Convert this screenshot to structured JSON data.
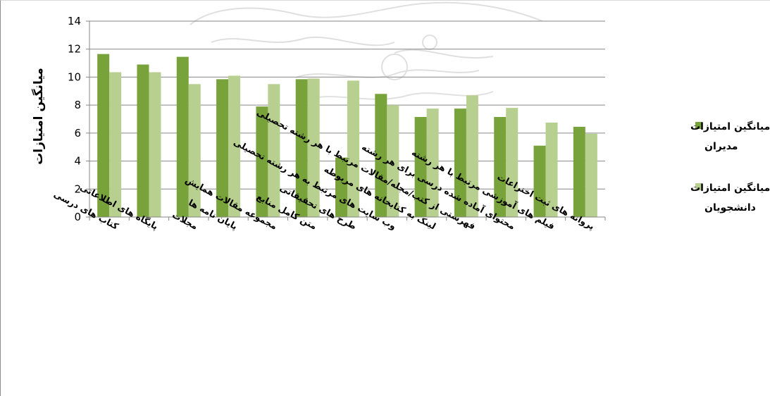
{
  "chart_data": {
    "type": "bar",
    "title": "",
    "xlabel": "",
    "ylabel": "میانگین امتیازات",
    "ylim": [
      0,
      14
    ],
    "yticks": [
      0,
      2,
      4,
      6,
      8,
      10,
      12,
      14
    ],
    "grid": true,
    "legend_position": "right",
    "categories": [
      "کتاب های درسی",
      "پایگاه های اطلاعاتی",
      "مجلات",
      "پایان نامه ها",
      "مجموعه مقالات همایش",
      "متن کامل منابع",
      "طرح های تحقیقاتی",
      "وب سایت های مرتبط به هر رشته تحصیلی",
      "لینک به کتابخانه های مربوطه",
      "فهرستی از کتب/مجله/مقالات مرتبط با هر رشته تحصیلی",
      "محتوای آماده شده درسی برای هر رشته",
      "فیلم های آموزشی مرتبط با هر رشته",
      "پروانه های ثبت اختراعات"
    ],
    "series": [
      {
        "name": "میانگین امتیازات مدیران",
        "legend_lines": [
          "میانگین امتیازات",
          "مدیران"
        ],
        "color": "#77a33a",
        "values": [
          11.65,
          10.9,
          11.45,
          9.85,
          7.9,
          9.85,
          4.25,
          8.8,
          7.15,
          7.75,
          7.15,
          5.1,
          6.45
        ]
      },
      {
        "name": "میانگین امتیازات دانشجویان",
        "legend_lines": [
          "میانگین امتیازات",
          "دانشجویان"
        ],
        "color": "#b7d08f",
        "values": [
          10.35,
          10.35,
          9.5,
          10.1,
          9.5,
          9.9,
          9.75,
          8.0,
          7.75,
          8.7,
          7.8,
          6.75,
          5.95
        ]
      }
    ]
  }
}
